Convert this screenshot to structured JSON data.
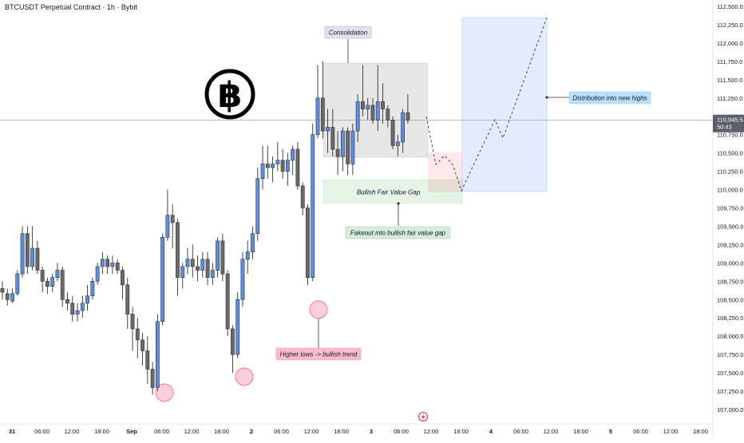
{
  "header": {
    "title": "BTCUSDT Perpetual Contract · 1h · Bybit"
  },
  "chart_data": {
    "type": "candlestick",
    "ylim": [
      107000,
      112500
    ],
    "y_ticks": [
      "112,500.0",
      "112,250.0",
      "112,000.0",
      "111,750.0",
      "111,500.0",
      "111,250.0",
      "111,000.0",
      "110,750.0",
      "110,500.0",
      "110,250.0",
      "110,000.0",
      "109,750.0",
      "109,500.0",
      "109,250.0",
      "109,000.0",
      "108,750.0",
      "108,500.0",
      "108,250.0",
      "108,000.0",
      "107,750.0",
      "107,500.0",
      "107,250.0",
      "107,000.0"
    ],
    "x_ticks": [
      "31",
      "06:00",
      "12:00",
      "18:00",
      "Sep",
      "06:00",
      "12:00",
      "18:00",
      "2",
      "06:00",
      "12:00",
      "18:00",
      "3",
      "06:00",
      "12:00",
      "18:00",
      "4",
      "06:00",
      "12:00",
      "18:00",
      "5",
      "06:00",
      "12:00",
      "18:00"
    ],
    "current_price": {
      "value": 110945.5,
      "label": "110,945.5",
      "countdown": "50:43"
    },
    "candles": [
      [
        108650,
        108750,
        108500,
        108600
      ],
      [
        108580,
        108650,
        108420,
        108500
      ],
      [
        108480,
        108650,
        108450,
        108580
      ],
      [
        108580,
        108900,
        108550,
        108850
      ],
      [
        108850,
        109500,
        108800,
        109400
      ],
      [
        109400,
        109500,
        108850,
        108950
      ],
      [
        108950,
        109500,
        108900,
        109200
      ],
      [
        109200,
        109300,
        108850,
        108900
      ],
      [
        108900,
        108950,
        108600,
        108750
      ],
      [
        108750,
        108800,
        108580,
        108680
      ],
      [
        108680,
        108850,
        108600,
        108800
      ],
      [
        108800,
        109000,
        108750,
        108900
      ],
      [
        108900,
        108950,
        108400,
        108500
      ],
      [
        108500,
        108600,
        108350,
        108450
      ],
      [
        108450,
        108550,
        108200,
        108300
      ],
      [
        108300,
        108450,
        108200,
        108350
      ],
      [
        108350,
        108550,
        108250,
        108450
      ],
      [
        108450,
        108700,
        108350,
        108550
      ],
      [
        108550,
        108800,
        108500,
        108750
      ],
      [
        108750,
        109000,
        108700,
        108950
      ],
      [
        108950,
        109150,
        108850,
        109050
      ],
      [
        109050,
        109100,
        108850,
        108950
      ],
      [
        108950,
        109100,
        108850,
        109000
      ],
      [
        109000,
        109050,
        108850,
        108900
      ],
      [
        108900,
        108950,
        108500,
        108700
      ],
      [
        108700,
        108800,
        108100,
        108300
      ],
      [
        108300,
        108400,
        107800,
        108100
      ],
      [
        108100,
        108250,
        107700,
        107950
      ],
      [
        107950,
        108050,
        107600,
        107800
      ],
      [
        107800,
        108000,
        107350,
        107550
      ],
      [
        107550,
        107650,
        107200,
        107300
      ],
      [
        107300,
        108300,
        107250,
        108200
      ],
      [
        108200,
        109400,
        108150,
        109350
      ],
      [
        109350,
        110000,
        109300,
        109650
      ],
      [
        109650,
        109800,
        109200,
        109550
      ],
      [
        109550,
        109600,
        108550,
        108800
      ],
      [
        108800,
        109000,
        108650,
        108950
      ],
      [
        108950,
        109200,
        108850,
        109050
      ],
      [
        109050,
        109250,
        108800,
        108950
      ],
      [
        108950,
        109100,
        108750,
        108900
      ],
      [
        108900,
        109150,
        108800,
        109050
      ],
      [
        109050,
        109150,
        108700,
        108800
      ],
      [
        108800,
        109000,
        108700,
        108900
      ],
      [
        108900,
        109350,
        108800,
        109300
      ],
      [
        109300,
        109400,
        108750,
        108850
      ],
      [
        108850,
        108900,
        108000,
        108100
      ],
      [
        108100,
        108150,
        107500,
        107750
      ],
      [
        107750,
        108600,
        107700,
        108500
      ],
      [
        108500,
        109150,
        108400,
        109050
      ],
      [
        109050,
        109300,
        108850,
        109150
      ],
      [
        109150,
        109500,
        109050,
        109400
      ],
      [
        109400,
        110300,
        109300,
        110150
      ],
      [
        110150,
        110600,
        110000,
        110350
      ],
      [
        110350,
        110600,
        110150,
        110300
      ],
      [
        110300,
        110450,
        110100,
        110350
      ],
      [
        110350,
        110650,
        110250,
        110400
      ],
      [
        110400,
        110550,
        110150,
        110250
      ],
      [
        110250,
        110500,
        110050,
        110400
      ],
      [
        110400,
        110600,
        110200,
        110550
      ],
      [
        110550,
        110650,
        110000,
        110050
      ],
      [
        110050,
        110100,
        109650,
        109750
      ],
      [
        109750,
        109800,
        108700,
        108800
      ],
      [
        108800,
        110900,
        108750,
        110750
      ],
      [
        110750,
        111700,
        110700,
        111250
      ],
      [
        111250,
        111750,
        110700,
        110800
      ],
      [
        110800,
        111100,
        110500,
        110850
      ],
      [
        110850,
        111100,
        110450,
        110550
      ],
      [
        110550,
        110800,
        110200,
        110450
      ],
      [
        110450,
        110850,
        110250,
        110800
      ],
      [
        110800,
        110850,
        110200,
        110350
      ],
      [
        110350,
        110900,
        110200,
        110800
      ],
      [
        110800,
        111300,
        110650,
        111200
      ],
      [
        111200,
        111700,
        111000,
        111100
      ],
      [
        111100,
        111250,
        110950,
        111150
      ],
      [
        111150,
        111250,
        110900,
        110950
      ],
      [
        110950,
        111700,
        110800,
        111200
      ],
      [
        111200,
        111450,
        110900,
        111100
      ],
      [
        111100,
        111150,
        110850,
        110950
      ],
      [
        110950,
        111000,
        110550,
        110600
      ],
      [
        110600,
        110750,
        110450,
        110650
      ],
      [
        110650,
        111100,
        110500,
        111050
      ],
      [
        111050,
        111300,
        110900,
        110950
      ]
    ],
    "projection": [
      [
        534,
        146
      ],
      [
        546,
        206
      ],
      [
        557,
        195
      ],
      [
        567,
        206
      ],
      [
        578,
        239
      ],
      [
        620,
        150
      ],
      [
        630,
        173
      ],
      [
        685,
        22
      ]
    ],
    "annotations": {
      "consolidation": "Consolidation",
      "fvg": "Bullish Fair Value Gap",
      "fakeout": "Fakeout into bullish fair value gap",
      "distribution": "Distribution into new highs",
      "higher_lows": "Higher lows -> bullish trend"
    },
    "colors": {
      "up": "#5b8ee6",
      "down": "#6a6a6a",
      "axis_text": "#131722"
    }
  }
}
